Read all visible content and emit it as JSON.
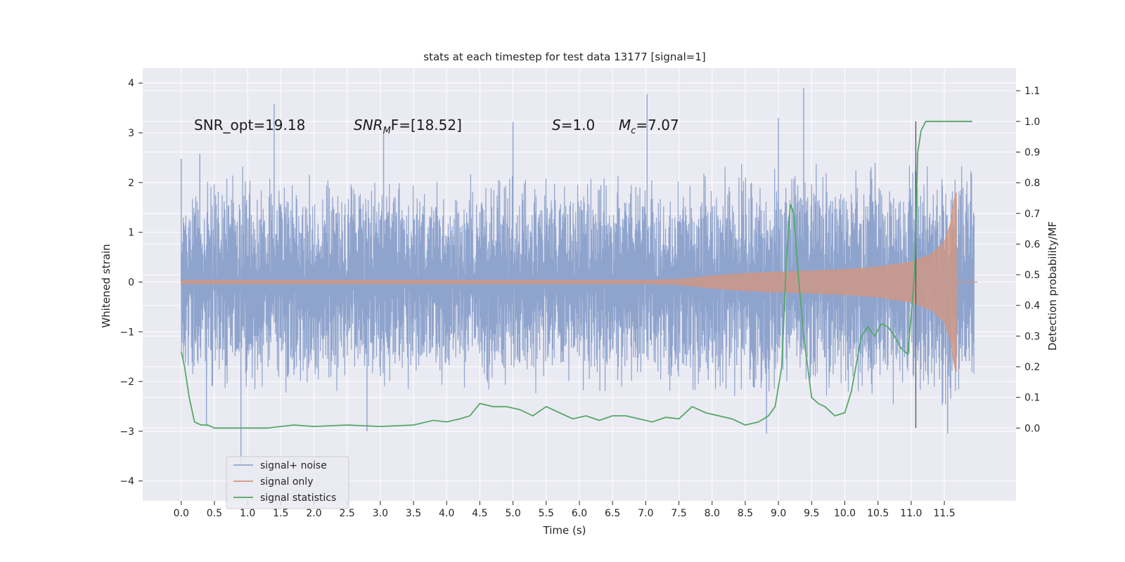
{
  "chart_data": {
    "type": "line",
    "title": "stats at each timestep for test data 13177 [signal=1]",
    "xlabel": "Time (s)",
    "ylabel": "Whitened strain",
    "ylabel_right": "Detection probability/MF",
    "xlim": [
      -0.58,
      12.58
    ],
    "ylim": [
      -4.4,
      4.3
    ],
    "ylim_right": [
      -0.2375,
      1.1737
    ],
    "x_ticks": [
      "0.0",
      "0.5",
      "1.0",
      "1.5",
      "2.0",
      "2.5",
      "3.0",
      "3.5",
      "4.0",
      "4.5",
      "5.0",
      "5.5",
      "6.0",
      "6.5",
      "7.0",
      "7.5",
      "8.0",
      "8.5",
      "9.0",
      "9.5",
      "10.0",
      "10.5",
      "11.0",
      "11.5"
    ],
    "y_ticks": [
      4,
      3,
      2,
      1,
      0,
      -1,
      -2,
      -3,
      -4
    ],
    "y_ticks_right": [
      "0.0",
      "0.1",
      "0.2",
      "0.3",
      "0.4",
      "0.5",
      "0.6",
      "0.7",
      "0.8",
      "0.9",
      "1.0",
      "1.1"
    ],
    "grid": true,
    "legend_position": "lower-left",
    "annotations": {
      "snr_opt": "SNR_opt=19.18",
      "snr_mf_prefix": "SNR",
      "snr_mf_sub": "M",
      "snr_mf_suffix": "F=[18.52]",
      "s_symbol": "S",
      "s_value": "=1.0",
      "mc_symbol": "M",
      "mc_sub": "c",
      "mc_value": "=7.07"
    },
    "vertical_marker_x": 11.07,
    "colors": {
      "background": "#eaeaf2",
      "grid": "#ffffff",
      "noise": "#8fa4cd",
      "signal": "#d6957c",
      "stats": "#55a868",
      "marker": "#555555"
    },
    "series": [
      {
        "name": "signal+ noise",
        "description_of_envelope": {
          "t": [
            0,
            1,
            2,
            3,
            4,
            5,
            6,
            7,
            8,
            8.5,
            9,
            9.5,
            10,
            10.5,
            11,
            11.5,
            11.95
          ],
          "upper": [
            2.2,
            2.4,
            2.2,
            2.3,
            2.2,
            2.3,
            2.4,
            2.3,
            2.4,
            2.5,
            2.6,
            2.5,
            2.5,
            2.5,
            2.5,
            2.6,
            2.4
          ],
          "lower": [
            -2.2,
            -2.4,
            -2.2,
            -2.3,
            -2.2,
            -2.3,
            -2.3,
            -2.3,
            -2.4,
            -2.5,
            -2.5,
            -2.4,
            -2.5,
            -2.5,
            -2.5,
            -2.7,
            -2.3
          ]
        },
        "spikes": [
          [
            0.0,
            2.48
          ],
          [
            0.28,
            2.58
          ],
          [
            0.9,
            -3.65
          ],
          [
            0.38,
            -2.9
          ],
          [
            1.4,
            3.58
          ],
          [
            2.8,
            -3.0
          ],
          [
            3.05,
            3.0
          ],
          [
            5.0,
            3.22
          ],
          [
            7.02,
            3.78
          ],
          [
            9.0,
            3.3
          ],
          [
            9.38,
            3.9
          ],
          [
            8.82,
            -3.05
          ],
          [
            11.55,
            -3.05
          ]
        ]
      },
      {
        "name": "signal only",
        "envelope": {
          "t": [
            0,
            7.0,
            7.5,
            8.0,
            8.5,
            9.0,
            9.5,
            10.0,
            10.5,
            11.0,
            11.3,
            11.5,
            11.6,
            11.65,
            11.68
          ],
          "amp": [
            0.03,
            0.03,
            0.05,
            0.12,
            0.17,
            0.2,
            0.22,
            0.25,
            0.3,
            0.4,
            0.55,
            0.8,
            1.2,
            1.7,
            1.8
          ]
        }
      },
      {
        "name": "signal statistics",
        "t": [
          0.0,
          0.05,
          0.12,
          0.2,
          0.3,
          0.4,
          0.5,
          0.7,
          1.0,
          1.3,
          1.5,
          1.7,
          2.0,
          2.5,
          3.0,
          3.5,
          3.8,
          4.0,
          4.2,
          4.35,
          4.5,
          4.7,
          4.9,
          5.1,
          5.3,
          5.5,
          5.7,
          5.9,
          6.1,
          6.3,
          6.5,
          6.7,
          6.9,
          7.1,
          7.3,
          7.5,
          7.7,
          7.9,
          8.1,
          8.3,
          8.5,
          8.7,
          8.85,
          8.95,
          9.05,
          9.12,
          9.18,
          9.23,
          9.3,
          9.38,
          9.5,
          9.6,
          9.7,
          9.85,
          10.0,
          10.1,
          10.25,
          10.35,
          10.45,
          10.55,
          10.65,
          10.75,
          10.85,
          10.95,
          11.05,
          11.1,
          11.15,
          11.22,
          11.3,
          11.5,
          11.75,
          11.92
        ],
        "values": [
          0.25,
          0.2,
          0.1,
          0.02,
          0.01,
          0.01,
          0.0,
          0.0,
          0.0,
          0.0,
          0.005,
          0.01,
          0.005,
          0.01,
          0.005,
          0.01,
          0.025,
          0.02,
          0.03,
          0.04,
          0.08,
          0.07,
          0.07,
          0.06,
          0.04,
          0.07,
          0.05,
          0.03,
          0.04,
          0.025,
          0.04,
          0.04,
          0.03,
          0.02,
          0.035,
          0.03,
          0.07,
          0.05,
          0.04,
          0.03,
          0.01,
          0.02,
          0.04,
          0.07,
          0.2,
          0.55,
          0.73,
          0.7,
          0.5,
          0.3,
          0.1,
          0.08,
          0.07,
          0.04,
          0.05,
          0.12,
          0.3,
          0.33,
          0.3,
          0.34,
          0.33,
          0.3,
          0.26,
          0.24,
          0.5,
          0.9,
          0.97,
          1.0,
          1.0,
          1.0,
          1.0,
          1.0
        ]
      }
    ]
  }
}
